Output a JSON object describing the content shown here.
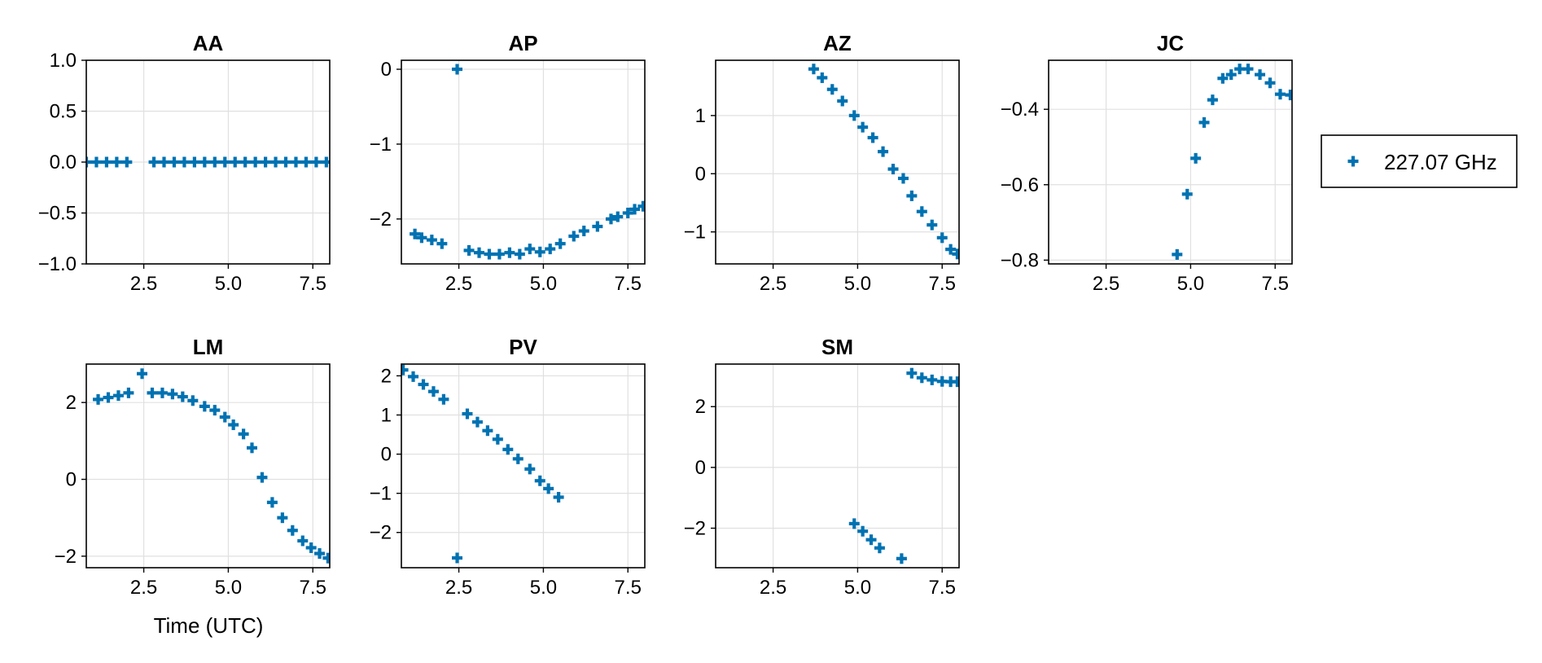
{
  "chart_data": {
    "type": "scatter",
    "marker_color": "#0072b2",
    "marker": "cross",
    "legend": {
      "position": "right",
      "entries": [
        "227.07 GHz"
      ]
    },
    "x_label": "Time (UTC)",
    "grid": true,
    "panels": [
      {
        "title": "AA",
        "xlim": [
          0.8,
          8.0
        ],
        "ylim": [
          -1.0,
          1.0
        ],
        "xticks": [
          "2.5",
          "5.0",
          "7.5"
        ],
        "xtick_values": [
          2.5,
          5.0,
          7.5
        ],
        "yticks": [
          "1.0",
          "0.5",
          "0.0",
          "−0.5",
          "−1.0"
        ],
        "ytick_values": [
          1.0,
          0.5,
          0.0,
          -0.5,
          -1.0
        ],
        "x": [
          0.8,
          1.1,
          1.4,
          1.7,
          2.0,
          2.8,
          3.1,
          3.4,
          3.7,
          4.0,
          4.3,
          4.6,
          4.9,
          5.2,
          5.5,
          5.8,
          6.1,
          6.4,
          6.7,
          7.0,
          7.3,
          7.6,
          7.9
        ],
        "y": [
          0,
          0,
          0,
          0,
          0,
          0,
          0,
          0,
          0,
          0,
          0,
          0,
          0,
          0,
          0,
          0,
          0,
          0,
          0,
          0,
          0,
          0,
          0
        ]
      },
      {
        "title": "AP",
        "xlim": [
          0.8,
          8.0
        ],
        "ylim": [
          -2.6,
          0.12
        ],
        "xticks": [
          "2.5",
          "5.0",
          "7.5"
        ],
        "xtick_values": [
          2.5,
          5.0,
          7.5
        ],
        "yticks": [
          "0",
          "−1",
          "−2"
        ],
        "ytick_values": [
          0,
          -1,
          -2
        ],
        "x": [
          1.2,
          1.4,
          1.7,
          2.0,
          2.45,
          2.8,
          3.1,
          3.4,
          3.7,
          4.0,
          4.3,
          4.6,
          4.9,
          5.2,
          5.5,
          5.9,
          6.2,
          6.6,
          7.0,
          7.2,
          7.5,
          7.7,
          7.95
        ],
        "y": [
          -2.2,
          -2.25,
          -2.28,
          -2.33,
          0.0,
          -2.42,
          -2.45,
          -2.47,
          -2.47,
          -2.45,
          -2.47,
          -2.4,
          -2.44,
          -2.4,
          -2.33,
          -2.23,
          -2.16,
          -2.1,
          -2.0,
          -1.97,
          -1.92,
          -1.87,
          -1.83
        ]
      },
      {
        "title": "AZ",
        "xlim": [
          0.8,
          8.0
        ],
        "ylim": [
          -1.55,
          1.95
        ],
        "xticks": [
          "2.5",
          "5.0",
          "7.5"
        ],
        "xtick_values": [
          2.5,
          5.0,
          7.5
        ],
        "yticks": [
          "1",
          "0",
          "−1"
        ],
        "ytick_values": [
          1,
          0,
          -1
        ],
        "x": [
          3.7,
          3.95,
          4.25,
          4.55,
          4.9,
          5.15,
          5.45,
          5.75,
          6.05,
          6.35,
          6.6,
          6.9,
          7.2,
          7.5,
          7.75,
          7.95
        ],
        "y": [
          1.8,
          1.65,
          1.45,
          1.25,
          1.0,
          0.8,
          0.62,
          0.38,
          0.08,
          -0.08,
          -0.38,
          -0.65,
          -0.88,
          -1.1,
          -1.3,
          -1.38
        ]
      },
      {
        "title": "JC",
        "xlim": [
          0.8,
          8.0
        ],
        "ylim": [
          -0.81,
          -0.27
        ],
        "xticks": [
          "2.5",
          "5.0",
          "7.5"
        ],
        "xtick_values": [
          2.5,
          5.0,
          7.5
        ],
        "yticks": [
          "−0.4",
          "−0.6",
          "−0.8"
        ],
        "ytick_values": [
          -0.4,
          -0.6,
          -0.8
        ],
        "x": [
          4.6,
          4.9,
          5.15,
          5.4,
          5.65,
          5.95,
          6.2,
          6.45,
          6.7,
          7.05,
          7.35,
          7.65,
          7.95
        ],
        "y": [
          -0.785,
          -0.625,
          -0.53,
          -0.435,
          -0.375,
          -0.318,
          -0.308,
          -0.293,
          -0.293,
          -0.308,
          -0.33,
          -0.36,
          -0.362
        ]
      },
      {
        "title": "LM",
        "xlim": [
          0.8,
          8.0
        ],
        "ylim": [
          -2.3,
          3.0
        ],
        "xticks": [
          "2.5",
          "5.0",
          "7.5"
        ],
        "xtick_values": [
          2.5,
          5.0,
          7.5
        ],
        "yticks": [
          "2",
          "0",
          "−2"
        ],
        "ytick_values": [
          2,
          0,
          -2
        ],
        "x": [
          1.15,
          1.45,
          1.75,
          2.05,
          2.45,
          2.75,
          3.05,
          3.35,
          3.65,
          3.95,
          4.3,
          4.6,
          4.9,
          5.15,
          5.45,
          5.7,
          6.0,
          6.3,
          6.6,
          6.9,
          7.2,
          7.45,
          7.7,
          7.95
        ],
        "y": [
          2.08,
          2.13,
          2.18,
          2.25,
          2.75,
          2.25,
          2.25,
          2.22,
          2.15,
          2.05,
          1.9,
          1.8,
          1.62,
          1.42,
          1.18,
          0.82,
          0.05,
          -0.6,
          -1.0,
          -1.33,
          -1.6,
          -1.78,
          -1.93,
          -2.05
        ]
      },
      {
        "title": "PV",
        "xlim": [
          0.8,
          8.0
        ],
        "ylim": [
          -2.9,
          2.3
        ],
        "xticks": [
          "2.5",
          "5.0",
          "7.5"
        ],
        "xtick_values": [
          2.5,
          5.0,
          7.5
        ],
        "yticks": [
          "2",
          "1",
          "0",
          "−1",
          "−2"
        ],
        "ytick_values": [
          2,
          1,
          0,
          -1,
          -2
        ],
        "x": [
          0.85,
          1.15,
          1.45,
          1.75,
          2.05,
          2.45,
          2.75,
          3.05,
          3.35,
          3.65,
          3.95,
          4.25,
          4.6,
          4.9,
          5.15,
          5.45
        ],
        "y": [
          2.15,
          1.98,
          1.78,
          1.6,
          1.4,
          -2.65,
          1.03,
          0.82,
          0.6,
          0.38,
          0.12,
          -0.12,
          -0.38,
          -0.68,
          -0.88,
          -1.1
        ]
      },
      {
        "title": "SM",
        "xlim": [
          0.8,
          8.0
        ],
        "ylim": [
          -3.3,
          3.4
        ],
        "xticks": [
          "2.5",
          "5.0",
          "7.5"
        ],
        "xtick_values": [
          2.5,
          5.0,
          7.5
        ],
        "yticks": [
          "2",
          "0",
          "−2"
        ],
        "ytick_values": [
          2,
          0,
          -2
        ],
        "x": [
          4.9,
          5.15,
          5.4,
          5.65,
          6.3,
          6.6,
          6.9,
          7.2,
          7.5,
          7.75,
          7.95
        ],
        "y": [
          -1.85,
          -2.1,
          -2.38,
          -2.65,
          -3.0,
          3.1,
          2.95,
          2.88,
          2.83,
          2.82,
          2.82
        ]
      }
    ]
  }
}
